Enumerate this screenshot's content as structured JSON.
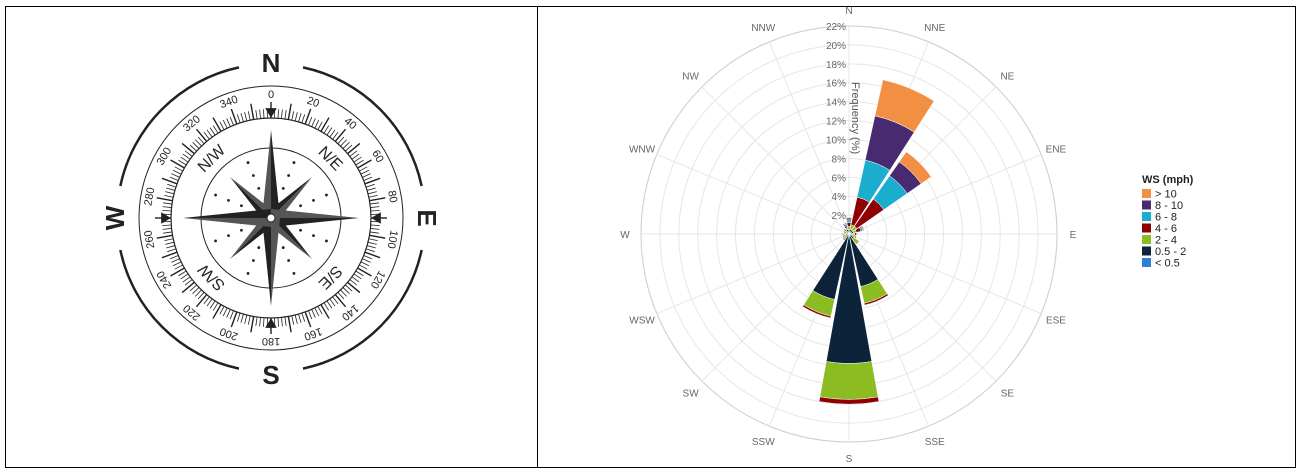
{
  "compass": {
    "cardinals": [
      "N",
      "E",
      "S",
      "W"
    ],
    "intercardinals": [
      "N/E",
      "S/E",
      "S/W",
      "N/W"
    ],
    "degrees": [
      "0",
      "20",
      "40",
      "60",
      "80",
      "100",
      "120",
      "140",
      "160",
      "180",
      "200",
      "220",
      "240",
      "260",
      "280",
      "300",
      "320",
      "340"
    ]
  },
  "chart_data": {
    "type": "windrose",
    "directions": [
      "N",
      "NNE",
      "NE",
      "ENE",
      "E",
      "ESE",
      "SE",
      "SSE",
      "S",
      "SSW",
      "SW",
      "WSW",
      "W",
      "WNW",
      "NW",
      "NNW"
    ],
    "radial_ticks": [
      "2%",
      "4%",
      "6%",
      "8%",
      "10%",
      "12%",
      "14%",
      "16%",
      "18%",
      "20%",
      "22%"
    ],
    "radial_max": 22,
    "ylabel": "Frequency (%)",
    "legend": {
      "title": "WS (mph)",
      "placement": "right"
    },
    "series": [
      {
        "name": "< 0.5",
        "color": "#2f7ed8",
        "values": [
          0.2,
          0.2,
          0.2,
          0.2,
          0.1,
          0.1,
          0.1,
          0.2,
          0.2,
          0.1,
          0.1,
          0.1,
          0.1,
          0.1,
          0.1,
          0.2
        ]
      },
      {
        "name": "0.5 - 2",
        "color": "#0d233a",
        "values": [
          0.3,
          0.3,
          0.3,
          0.3,
          0.2,
          0.3,
          0.5,
          5.5,
          13.5,
          7.0,
          0.3,
          0.3,
          0.3,
          0.2,
          0.2,
          0.3
        ]
      },
      {
        "name": "2 - 4",
        "color": "#8bbc21",
        "values": [
          0.3,
          0.5,
          0.5,
          0.3,
          0.3,
          0.3,
          0.6,
          1.8,
          3.8,
          1.8,
          0.3,
          0.2,
          0.2,
          0.2,
          0.2,
          0.2
        ]
      },
      {
        "name": "4 - 6",
        "color": "#910000",
        "values": [
          0.4,
          3.0,
          3.5,
          0.5,
          0.2,
          0.1,
          0.1,
          0.2,
          0.5,
          0.2,
          0.1,
          0.1,
          0.1,
          0.1,
          0.1,
          0.2
        ]
      },
      {
        "name": "6 - 8",
        "color": "#1aadce",
        "values": [
          0.3,
          4.0,
          3.0,
          0.2,
          0.1,
          0.0,
          0.0,
          0.0,
          0.0,
          0.0,
          0.0,
          0.0,
          0.0,
          0.0,
          0.1,
          0.2
        ]
      },
      {
        "name": "8 - 10",
        "color": "#492970",
        "values": [
          0.2,
          4.8,
          1.8,
          0.1,
          0.0,
          0.0,
          0.0,
          0.0,
          0.0,
          0.0,
          0.0,
          0.0,
          0.0,
          0.0,
          0.0,
          0.1
        ]
      },
      {
        "name": "> 10",
        "color": "#f28f43",
        "values": [
          0.1,
          3.9,
          1.3,
          0.1,
          0.0,
          0.0,
          0.0,
          0.0,
          0.0,
          0.0,
          0.0,
          0.0,
          0.0,
          0.0,
          0.0,
          0.0
        ]
      }
    ]
  }
}
